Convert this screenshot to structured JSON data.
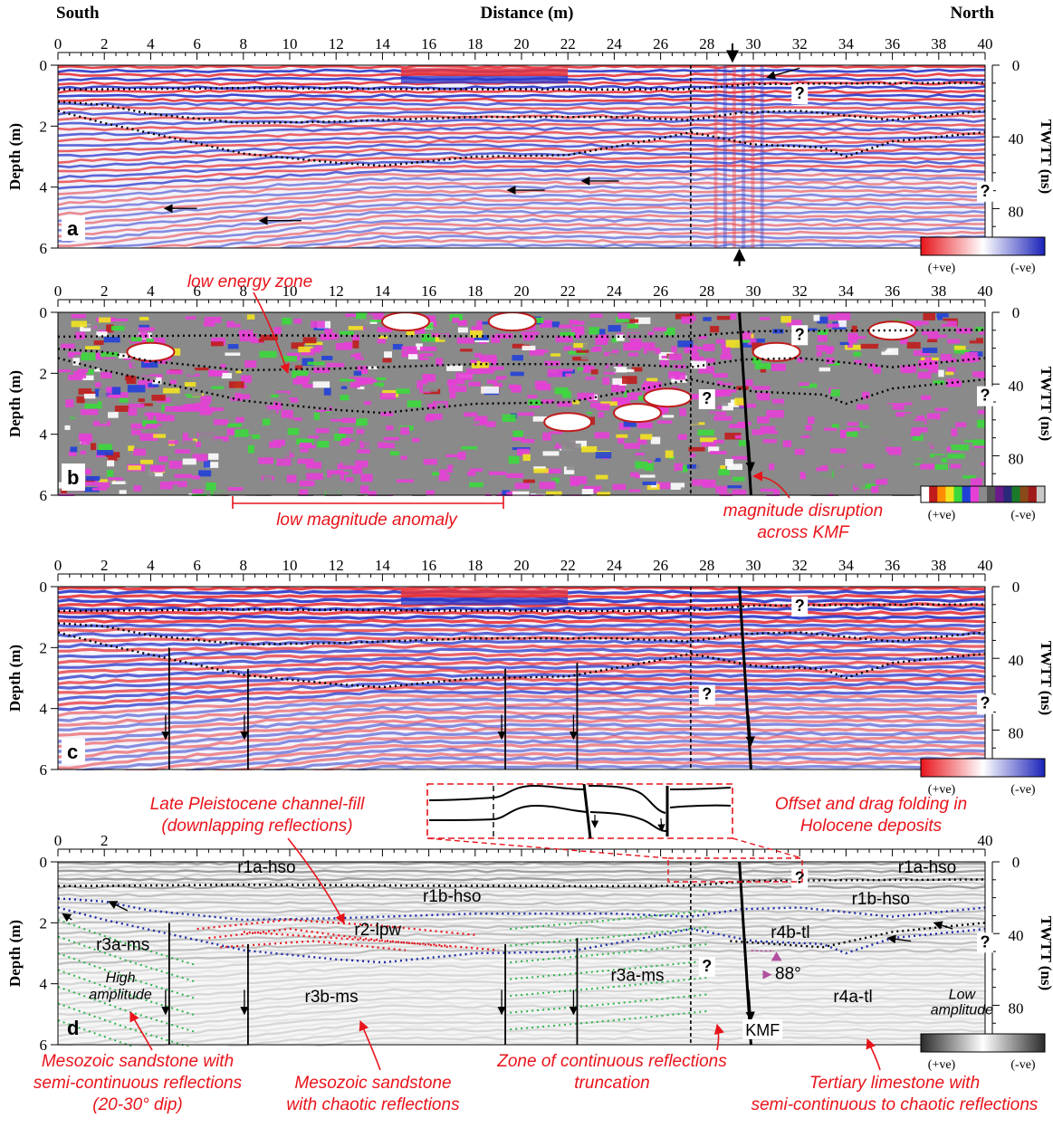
{
  "header": {
    "left": "South",
    "center": "Distance (m)",
    "right": "North"
  },
  "axes": {
    "x_ticks": [
      "0",
      "2",
      "4",
      "6",
      "8",
      "10",
      "12",
      "14",
      "16",
      "18",
      "20",
      "22",
      "24",
      "26",
      "28",
      "30",
      "32",
      "34",
      "36",
      "38",
      "40"
    ],
    "y_ticks": [
      "0",
      "2",
      "4",
      "6"
    ],
    "twtt_ticks": [
      "0",
      "40",
      "80"
    ],
    "depth_label": "Depth (m)",
    "twtt_label": "TWTT (ns)"
  },
  "panels": {
    "a": {
      "letter": "a"
    },
    "b": {
      "letter": "b"
    },
    "c": {
      "letter": "c"
    },
    "d": {
      "letter": "d",
      "x_ticks": [
        "0",
        "2",
        "40"
      ]
    }
  },
  "scale": {
    "pos": "(+ve)",
    "neg": "(-ve)"
  },
  "question_mark": "?",
  "annotations": {
    "low_energy_zone": "low energy zone",
    "low_magnitude_anomaly": "low magnitude anomaly",
    "magnitude_disruption_1": "magnitude disruption",
    "magnitude_disruption_2": "across KMF",
    "channel_fill_1": "Late Pleistocene channel-fill",
    "channel_fill_2": "(downlapping reflections)",
    "offset_1": "Offset and drag folding in",
    "offset_2": "Holocene deposits",
    "mesozoic_semi_1": "Mesozoic sandstone with",
    "mesozoic_semi_2": "semi-continuous reflections",
    "mesozoic_semi_3": "(20-30° dip)",
    "mesozoic_chaotic_1": "Mesozoic sandstone",
    "mesozoic_chaotic_2": "with chaotic reflections",
    "truncation_1": "Zone of continuous reflections",
    "truncation_2": "truncation",
    "limestone_1": "Tertiary limestone with",
    "limestone_2": "semi-continuous to chaotic reflections"
  },
  "units": {
    "r1a_left": "r1a-hso",
    "r1a_right": "r1a-hso",
    "r1b_left": "r1b-hso",
    "r1b_right": "r1b-hso",
    "r2": "r2-lpw",
    "r3a_left": "r3a-ms",
    "r3a_right": "r3a-ms",
    "r3b": "r3b-ms",
    "r4a": "r4a-tl",
    "r4b": "r4b-tl",
    "high_amp_1": "High",
    "high_amp_2": "amplitude",
    "low_amp_1": "Low",
    "low_amp_2": "amplitude",
    "angle": "88°",
    "kmf": "KMF"
  },
  "colors": {
    "annotation_red": "#e8141b",
    "horizon_black": "#000000",
    "horizon_blue": "#1e2aa8",
    "horizon_red": "#e8141b",
    "horizon_green": "#2db34a",
    "wiggle_red": "#e8333a",
    "wiggle_blue": "#2a36c8",
    "magnitude_pink": "#e63fd6",
    "magnitude_grey": "#8a8a8a",
    "angle_marker": "#b0509e"
  }
}
